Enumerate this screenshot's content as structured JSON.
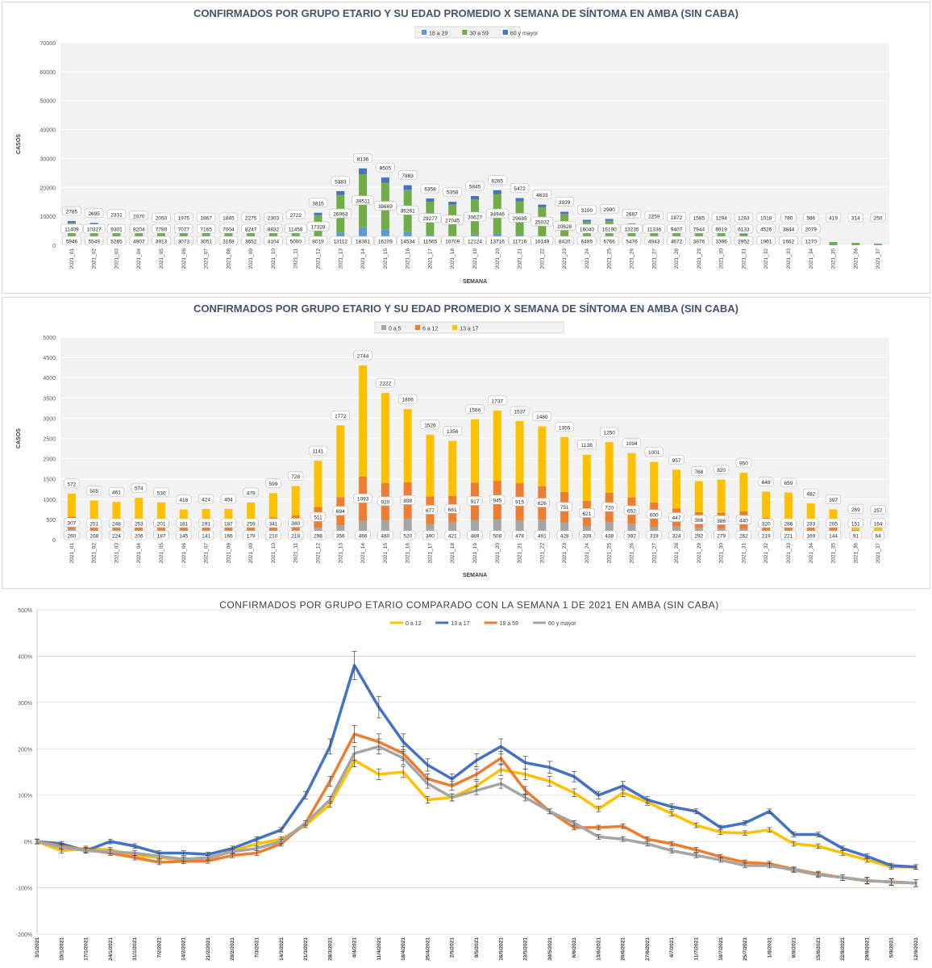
{
  "chart_data": [
    {
      "type": "bar",
      "stacked": true,
      "title": "CONFIRMADOS POR GRUPO ETARIO Y SU EDAD PROMEDIO X SEMANA DE SÍNTOMA EN AMBA (SIN CABA)",
      "xlabel": "SEMANA",
      "ylabel": "CASOS",
      "ylim": [
        0,
        70000
      ],
      "yticks": [
        "0",
        "10000",
        "20000",
        "30000",
        "40000",
        "50000",
        "60000",
        "70000"
      ],
      "legend_position": "top",
      "grid": true,
      "categories": [
        "2021_01",
        "2021_02",
        "2021_03",
        "2021_04",
        "2021_05",
        "2021_06",
        "2021_07",
        "2021_08",
        "2021_09",
        "2021_10",
        "2021_11",
        "2021_12",
        "2021_13",
        "2021_14",
        "2021_15",
        "2021_16",
        "2021_17",
        "2021_18",
        "2021_19",
        "2021_20",
        "2021_21",
        "2021_22",
        "2021_23",
        "2021_24",
        "2021_25",
        "2021_26",
        "2021_27",
        "2021_28",
        "2021_29",
        "2021_30",
        "2021_31",
        "2021_32",
        "2021_33",
        "2021_34",
        "2021_35",
        "2021_36",
        "2021_37"
      ],
      "series": [
        {
          "name": "18 a 29",
          "color": "#5b9bd5",
          "values": [
            1800,
            1600,
            1500,
            1400,
            1100,
            900,
            900,
            950,
            1100,
            1300,
            1600,
            2400,
            4300,
            6200,
            5400,
            4700,
            3500,
            3300,
            3700,
            4000,
            3500,
            3000,
            2400,
            1700,
            1700,
            1500,
            1300,
            1200,
            1000,
            900,
            800,
            600,
            500,
            400,
            300,
            250,
            200
          ]
        },
        {
          "name": "30 a 59",
          "color": "#70ad47",
          "values": [
            5946,
            5549,
            5265,
            4907,
            3913,
            3073,
            3051,
            3168,
            3652,
            4104,
            5000,
            8019,
            13112,
            18361,
            16209,
            14534,
            11565,
            10709,
            12124,
            13716,
            11716,
            10149,
            8420,
            6485,
            6766,
            5476,
            4943,
            4672,
            3876,
            3396,
            2952,
            1961,
            1662,
            1270,
            700,
            500,
            300
          ]
        },
        {
          "name": "60 y mayor",
          "color": "#4472c4",
          "values": [
            600,
            550,
            500,
            450,
            380,
            300,
            300,
            320,
            360,
            400,
            500,
            800,
            1300,
            2000,
            1800,
            1500,
            1100,
            1000,
            1200,
            1300,
            1100,
            900,
            750,
            600,
            600,
            500,
            450,
            400,
            350,
            300,
            250,
            200,
            150,
            120,
            90,
            70,
            50
          ]
        }
      ],
      "labels_low": [
        "5946",
        "5549",
        "5265",
        "4907",
        "3913",
        "3073",
        "3051",
        "3168",
        "3652",
        "4104",
        "5000",
        "8019",
        "13112",
        "18361",
        "16209",
        "14534",
        "11565",
        "10709",
        "12124",
        "13716",
        "11716",
        "10149",
        "8420",
        "6485",
        "6766",
        "5476",
        "4943",
        "4672",
        "3876",
        "3396",
        "2952",
        "1961",
        "1662",
        "1270",
        "",
        "",
        ""
      ],
      "labels_mid": [
        "11409",
        "10327",
        "9301",
        "8204",
        "7780",
        "7077",
        "7165",
        "7004",
        "8247",
        "8832",
        "11458",
        "17328",
        "26963",
        "39511",
        "38669",
        "36261",
        "29277",
        "27045",
        "30627",
        "34946",
        "29685",
        "25032",
        "20628",
        "16040",
        "16190",
        "13235",
        "11336",
        "9407",
        "7944",
        "6919",
        "6133",
        "4526",
        "3844",
        "2079",
        "",
        "",
        ""
      ],
      "labels_top": [
        "2785",
        "2695",
        "2331",
        "2070",
        "2050",
        "1975",
        "1867",
        "1845",
        "2275",
        "2303",
        "2722",
        "3815",
        "5383",
        "8136",
        "8505",
        "7883",
        "6358",
        "5358",
        "5845",
        "6265",
        "5472",
        "4633",
        "3939",
        "3100",
        "2990",
        "2687",
        "2259",
        "1872",
        "1585",
        "1294",
        "1283",
        "1018",
        "780",
        "586",
        "419",
        "314",
        "250"
      ]
    },
    {
      "type": "bar",
      "stacked": true,
      "title": "CONFIRMADOS POR GRUPO ETARIO Y SU EDAD PROMEDIO X SEMANA DE SÍNTOMA EN AMBA (SIN CABA)",
      "xlabel": "SEMANA",
      "ylabel": "CASOS",
      "ylim": [
        0,
        5000
      ],
      "yticks": [
        "0",
        "500",
        "1000",
        "1500",
        "2000",
        "2500",
        "3000",
        "3500",
        "4000",
        "4500",
        "5000"
      ],
      "legend_position": "top",
      "grid": true,
      "categories": [
        "2021_01",
        "2021_02",
        "2021_03",
        "2021_04",
        "2021_05",
        "2021_06",
        "2021_07",
        "2021_08",
        "2021_09",
        "2021_10",
        "2021_11",
        "2021_12",
        "2021_13",
        "2021_14",
        "2021_15",
        "2021_16",
        "2021_17",
        "2021_18",
        "2021_19",
        "2021_20",
        "2021_21",
        "2021_22",
        "2021_23",
        "2021_24",
        "2021_25",
        "2021_26",
        "2021_27",
        "2021_28",
        "2021_29",
        "2021_30",
        "2021_31",
        "2021_32",
        "2021_33",
        "2021_34",
        "2021_35",
        "2021_36",
        "2021_37"
      ],
      "series": [
        {
          "name": "0 a 5",
          "color": "#a5a5a5",
          "values": [
            260,
            208,
            224,
            206,
            187,
            145,
            141,
            166,
            179,
            210,
            218,
            298,
            356,
            466,
            480,
            520,
            390,
            421,
            489,
            508,
            478,
            491,
            428,
            339,
            438,
            392,
            319,
            324,
            292,
            279,
            262,
            219,
            221,
            169,
            144,
            91,
            64
          ]
        },
        {
          "name": "6 a 12",
          "color": "#ed7d31",
          "values": [
            307,
            251,
            248,
            253,
            201,
            181,
            191,
            187,
            259,
            341,
            380,
            511,
            694,
            1093,
            920,
            898,
            677,
            661,
            917,
            945,
            915,
            826,
            751,
            621,
            720,
            652,
            600,
            447,
            386,
            386,
            440,
            320,
            286,
            233,
            205,
            151,
            164
          ]
        },
        {
          "name": "13 a 17",
          "color": "#ffc000",
          "values": [
            572,
            505,
            461,
            574,
            530,
            418,
            424,
            404,
            479,
            599,
            728,
            1141,
            1772,
            2744,
            2222,
            1806,
            1526,
            1356,
            1566,
            1737,
            1537,
            1480,
            1355,
            1138,
            1250,
            1094,
            1001,
            957,
            768,
            820,
            950,
            648,
            659,
            492,
            397,
            269,
            257
          ]
        }
      ],
      "labels_low": [
        "260",
        "208",
        "224",
        "206",
        "187",
        "145",
        "141",
        "166",
        "179",
        "210",
        "218",
        "298",
        "356",
        "466",
        "480",
        "520",
        "390",
        "421",
        "489",
        "508",
        "478",
        "491",
        "428",
        "339",
        "438",
        "392",
        "319",
        "324",
        "292",
        "279",
        "262",
        "219",
        "221",
        "169",
        "144",
        "91",
        "64"
      ],
      "labels_mid": [
        "307",
        "251",
        "248",
        "253",
        "201",
        "181",
        "191",
        "187",
        "259",
        "341",
        "380",
        "511",
        "694",
        "1093",
        "920",
        "898",
        "677",
        "661",
        "917",
        "945",
        "915",
        "826",
        "751",
        "621",
        "720",
        "652",
        "600",
        "447",
        "386",
        "386",
        "440",
        "320",
        "286",
        "233",
        "205",
        "151",
        "164"
      ],
      "labels_top": [
        "572",
        "505",
        "461",
        "574",
        "530",
        "418",
        "424",
        "404",
        "479",
        "599",
        "728",
        "1141",
        "1772",
        "2744",
        "2222",
        "1806",
        "1526",
        "1356",
        "1566",
        "1737",
        "1537",
        "1480",
        "1355",
        "1138",
        "1250",
        "1094",
        "1001",
        "957",
        "768",
        "820",
        "950",
        "648",
        "659",
        "492",
        "397",
        "269",
        "257"
      ]
    },
    {
      "type": "line",
      "title": "CONFIRMADOS POR GRUPO ETARIO COMPARADO CON LA SEMANA 1 DE 2021 EN AMBA (SIN CABA)",
      "xlabel": "",
      "ylabel": "",
      "ylim": [
        -200,
        500
      ],
      "yticks": [
        "-200%",
        "-100%",
        "0%",
        "100%",
        "200%",
        "300%",
        "400%",
        "500%"
      ],
      "legend_position": "top",
      "grid": true,
      "error_bars": true,
      "x": [
        "3/1/2021",
        "10/1/2021",
        "17/1/2021",
        "24/1/2021",
        "31/1/2021",
        "7/2/2021",
        "14/2/2021",
        "21/2/2021",
        "28/2/2021",
        "7/3/2021",
        "14/3/2021",
        "21/3/2021",
        "28/3/2021",
        "4/4/2021",
        "11/4/2021",
        "18/4/2021",
        "25/4/2021",
        "2/5/2021",
        "9/5/2021",
        "16/5/2021",
        "23/5/2021",
        "30/5/2021",
        "6/6/2021",
        "13/6/2021",
        "20/6/2021",
        "27/6/2021",
        "4/7/2021",
        "11/7/2021",
        "18/7/2021",
        "25/7/2021",
        "1/8/2021",
        "8/8/2021",
        "15/8/2021",
        "22/8/2021",
        "29/8/2021",
        "5/9/2021",
        "12/9/2021"
      ],
      "series": [
        {
          "name": "0 a 12",
          "color": "#ffc000",
          "values": [
            0,
            -20,
            -15,
            -18,
            -30,
            -35,
            -40,
            -38,
            -20,
            -5,
            5,
            35,
            80,
            175,
            145,
            150,
            90,
            95,
            120,
            155,
            145,
            130,
            105,
            70,
            105,
            85,
            60,
            35,
            20,
            18,
            25,
            -5,
            -10,
            -25,
            -40,
            -55,
            -55
          ]
        },
        {
          "name": "13 a 17",
          "color": "#4472c4",
          "values": [
            0,
            -5,
            -20,
            0,
            -10,
            -25,
            -25,
            -28,
            -15,
            5,
            25,
            100,
            205,
            380,
            290,
            215,
            165,
            135,
            175,
            205,
            170,
            160,
            140,
            100,
            120,
            90,
            75,
            65,
            30,
            40,
            65,
            15,
            15,
            -15,
            -32,
            -52,
            -55
          ]
        },
        {
          "name": "18 a 59",
          "color": "#ed7d31",
          "values": [
            0,
            -10,
            -18,
            -25,
            -35,
            -45,
            -43,
            -42,
            -30,
            -25,
            -5,
            40,
            130,
            232,
            215,
            190,
            135,
            120,
            145,
            180,
            110,
            65,
            30,
            30,
            33,
            5,
            -5,
            -18,
            -33,
            -45,
            -48,
            -60,
            -70,
            -78,
            -85,
            -87,
            -90
          ]
        },
        {
          "name": "60 y mayor",
          "color": "#a5a5a5",
          "values": [
            0,
            -12,
            -20,
            -22,
            -25,
            -32,
            -38,
            -35,
            -22,
            -15,
            0,
            40,
            90,
            190,
            205,
            180,
            125,
            95,
            110,
            125,
            95,
            65,
            40,
            10,
            5,
            -5,
            -20,
            -30,
            -40,
            -52,
            -52,
            -62,
            -72,
            -78,
            -84,
            -88,
            -90
          ]
        }
      ]
    }
  ]
}
